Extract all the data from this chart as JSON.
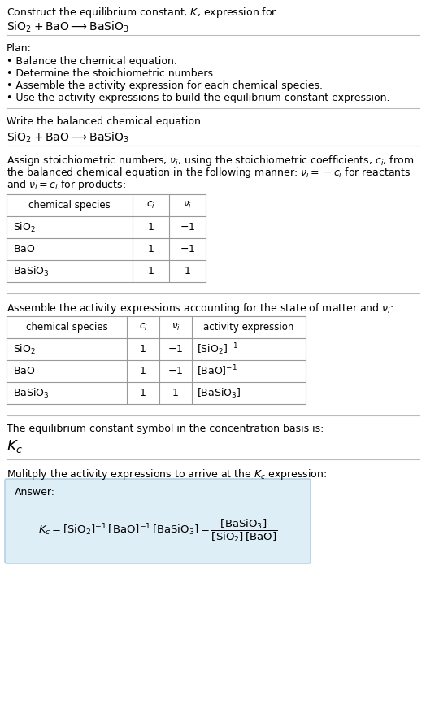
{
  "title_line1": "Construct the equilibrium constant, $K$, expression for:",
  "title_line2": "$\\mathrm{SiO_2 + BaO \\longrightarrow BaSiO_3}$",
  "plan_header": "Plan:",
  "plan_bullets": [
    "• Balance the chemical equation.",
    "• Determine the stoichiometric numbers.",
    "• Assemble the activity expression for each chemical species.",
    "• Use the activity expressions to build the equilibrium constant expression."
  ],
  "section2_header": "Write the balanced chemical equation:",
  "section2_eq": "$\\mathrm{SiO_2 + BaO \\longrightarrow BaSiO_3}$",
  "section3_intro": "Assign stoichiometric numbers, $\\nu_i$, using the stoichiometric coefficients, $c_i$, from\nthe balanced chemical equation in the following manner: $\\nu_i = -c_i$ for reactants\nand $\\nu_i = c_i$ for products:",
  "table1_headers": [
    "chemical species",
    "$c_i$",
    "$\\nu_i$"
  ],
  "table1_rows": [
    [
      "$\\mathrm{SiO_2}$",
      "1",
      "$-1$"
    ],
    [
      "$\\mathrm{BaO}$",
      "1",
      "$-1$"
    ],
    [
      "$\\mathrm{BaSiO_3}$",
      "1",
      "1"
    ]
  ],
  "section4_header": "Assemble the activity expressions accounting for the state of matter and $\\nu_i$:",
  "table2_headers": [
    "chemical species",
    "$c_i$",
    "$\\nu_i$",
    "activity expression"
  ],
  "table2_rows": [
    [
      "$\\mathrm{SiO_2}$",
      "1",
      "$-1$",
      "$[\\mathrm{SiO_2}]^{-1}$"
    ],
    [
      "$\\mathrm{BaO}$",
      "1",
      "$-1$",
      "$[\\mathrm{BaO}]^{-1}$"
    ],
    [
      "$\\mathrm{BaSiO_3}$",
      "1",
      "1",
      "$[\\mathrm{BaSiO_3}]$"
    ]
  ],
  "section5_header": "The equilibrium constant symbol in the concentration basis is:",
  "section5_symbol": "$K_c$",
  "section6_header": "Mulitply the activity expressions to arrive at the $K_c$ expression:",
  "answer_label": "Answer:",
  "answer_eq_line1": "$K_c = [\\mathrm{SiO_2}]^{-1}\\,[\\mathrm{BaO}]^{-1}\\,[\\mathrm{BaSiO_3}] = \\dfrac{[\\mathrm{BaSiO_3}]}{[\\mathrm{SiO_2}]\\,[\\mathrm{BaO}]}$",
  "bg_color": "#ffffff",
  "text_color": "#000000",
  "table_border_color": "#999999",
  "answer_box_facecolor": "#ddeef6",
  "answer_box_edgecolor": "#aaccdd",
  "separator_color": "#bbbbbb",
  "font_size": 9.0
}
